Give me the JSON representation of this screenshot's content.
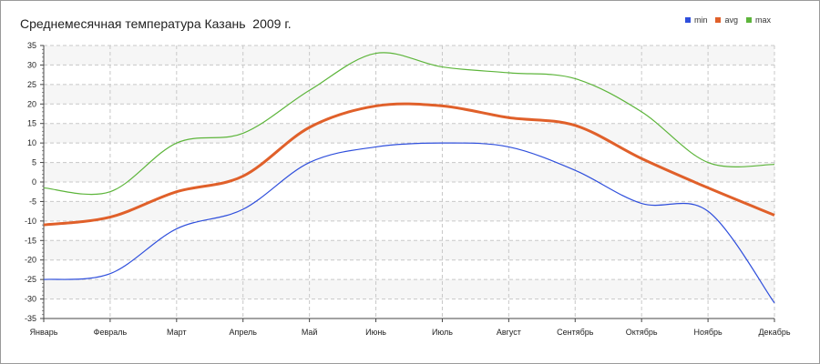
{
  "chart_data": {
    "type": "line",
    "title": "Среднемесячная температура Казань  2009 г.",
    "categories": [
      "Январь",
      "Февраль",
      "Март",
      "Апрель",
      "Май",
      "Июнь",
      "Июль",
      "Август",
      "Сентябрь",
      "Октябрь",
      "Ноябрь",
      "Декабрь"
    ],
    "series": [
      {
        "name": "min",
        "color": "#2f4fdc",
        "values": [
          -25,
          -23.5,
          -12,
          -7,
          5,
          9,
          10,
          9,
          3,
          -5.5,
          -7.5,
          -31
        ]
      },
      {
        "name": "avg",
        "color": "#e0602a",
        "values": [
          -11,
          -9,
          -2.5,
          1.5,
          14,
          19.5,
          19.5,
          16.5,
          14.5,
          6,
          -1.5,
          -8.5
        ]
      },
      {
        "name": "max",
        "color": "#5db53b",
        "values": [
          -1.5,
          -2.5,
          10,
          12.5,
          23.5,
          33,
          29.5,
          28,
          26.5,
          18,
          5,
          4.5
        ]
      }
    ],
    "ylim": [
      -35,
      35
    ],
    "yticks": [
      35,
      30,
      25,
      20,
      15,
      10,
      5,
      0,
      -5,
      -10,
      -15,
      -20,
      -25,
      -30,
      -35
    ],
    "grid": true,
    "legend_position": "top-right"
  }
}
